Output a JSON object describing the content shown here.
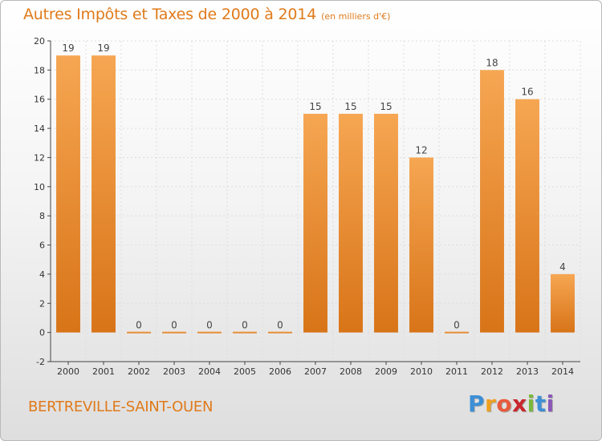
{
  "header": {
    "title": "Autres Impôts et Taxes de 2000 à 2014",
    "unit": "(en milliers d'€)"
  },
  "footer": {
    "city": "BERTREVILLE-SAINT-OUEN",
    "logo_letters": [
      "P",
      "r",
      "o",
      "x",
      "i",
      "t",
      "i"
    ],
    "logo_colors": [
      "#3d8fd6",
      "#f0a020",
      "#e85a3c",
      "#c8262d",
      "#7ab83a",
      "#3d8fd6",
      "#8a58b8"
    ]
  },
  "colors": {
    "bar_light": "#f6a652",
    "bar_dark": "#d87418",
    "grid": "#dddddd",
    "axis": "#444444",
    "title": "#e07a1a"
  },
  "chart_data": {
    "type": "bar",
    "title": "Autres Impôts et Taxes de 2000 à 2014",
    "subtitle": "(en milliers d'€)",
    "xlabel": "",
    "ylabel": "",
    "categories": [
      "2000",
      "2001",
      "2002",
      "2003",
      "2004",
      "2005",
      "2006",
      "2007",
      "2008",
      "2009",
      "2010",
      "2011",
      "2012",
      "2013",
      "2014"
    ],
    "values": [
      19,
      19,
      0,
      0,
      0,
      0,
      0,
      15,
      15,
      15,
      12,
      0,
      18,
      16,
      4
    ],
    "ylim": [
      -2,
      20
    ],
    "yticks": [
      -2,
      0,
      2,
      4,
      6,
      8,
      10,
      12,
      14,
      16,
      18,
      20
    ],
    "grid": true,
    "legend": "none"
  }
}
